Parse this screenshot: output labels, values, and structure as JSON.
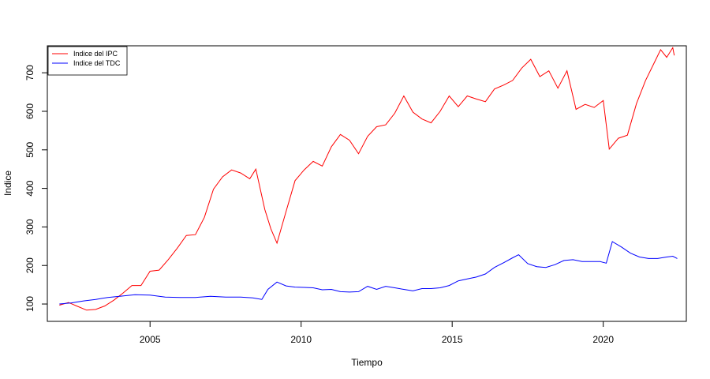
{
  "chart_data": {
    "type": "line",
    "title": "",
    "xlabel": "Tiempo",
    "ylabel": "Indice",
    "xlim": [
      2001.6,
      2022.75
    ],
    "ylim": [
      55,
      770
    ],
    "xticks": [
      2005,
      2010,
      2015,
      2020
    ],
    "yticks": [
      100,
      200,
      300,
      400,
      500,
      600,
      700
    ],
    "grid": false,
    "legend_position": "top-left",
    "series": [
      {
        "name": "Indice del IPC",
        "color": "#ff0000",
        "points": [
          [
            2002.0,
            97
          ],
          [
            2002.3,
            104
          ],
          [
            2002.6,
            94
          ],
          [
            2002.9,
            84
          ],
          [
            2003.2,
            86
          ],
          [
            2003.5,
            95
          ],
          [
            2003.8,
            110
          ],
          [
            2004.1,
            128
          ],
          [
            2004.4,
            148
          ],
          [
            2004.7,
            148
          ],
          [
            2005.0,
            185
          ],
          [
            2005.3,
            188
          ],
          [
            2005.6,
            215
          ],
          [
            2005.9,
            245
          ],
          [
            2006.2,
            278
          ],
          [
            2006.5,
            280
          ],
          [
            2006.8,
            325
          ],
          [
            2007.1,
            398
          ],
          [
            2007.4,
            430
          ],
          [
            2007.7,
            448
          ],
          [
            2008.0,
            440
          ],
          [
            2008.3,
            425
          ],
          [
            2008.5,
            450
          ],
          [
            2008.8,
            345
          ],
          [
            2009.0,
            295
          ],
          [
            2009.2,
            258
          ],
          [
            2009.5,
            340
          ],
          [
            2009.8,
            420
          ],
          [
            2010.1,
            448
          ],
          [
            2010.4,
            470
          ],
          [
            2010.7,
            458
          ],
          [
            2011.0,
            508
          ],
          [
            2011.3,
            540
          ],
          [
            2011.6,
            525
          ],
          [
            2011.9,
            490
          ],
          [
            2012.2,
            535
          ],
          [
            2012.5,
            560
          ],
          [
            2012.8,
            565
          ],
          [
            2013.1,
            595
          ],
          [
            2013.4,
            640
          ],
          [
            2013.7,
            598
          ],
          [
            2014.0,
            580
          ],
          [
            2014.3,
            570
          ],
          [
            2014.6,
            600
          ],
          [
            2014.9,
            640
          ],
          [
            2015.2,
            612
          ],
          [
            2015.5,
            640
          ],
          [
            2015.8,
            632
          ],
          [
            2016.1,
            625
          ],
          [
            2016.4,
            658
          ],
          [
            2016.7,
            668
          ],
          [
            2017.0,
            680
          ],
          [
            2017.3,
            712
          ],
          [
            2017.6,
            735
          ],
          [
            2017.9,
            690
          ],
          [
            2018.2,
            705
          ],
          [
            2018.5,
            660
          ],
          [
            2018.8,
            705
          ],
          [
            2019.1,
            605
          ],
          [
            2019.4,
            618
          ],
          [
            2019.7,
            610
          ],
          [
            2020.0,
            628
          ],
          [
            2020.2,
            502
          ],
          [
            2020.5,
            530
          ],
          [
            2020.8,
            538
          ],
          [
            2021.1,
            620
          ],
          [
            2021.4,
            680
          ],
          [
            2021.7,
            728
          ],
          [
            2021.9,
            760
          ],
          [
            2022.1,
            740
          ],
          [
            2022.3,
            765
          ],
          [
            2022.35,
            745
          ]
        ]
      },
      {
        "name": "Indice del TDC",
        "color": "#0000ff",
        "points": [
          [
            2002.0,
            100
          ],
          [
            2002.4,
            103
          ],
          [
            2002.8,
            108
          ],
          [
            2003.2,
            112
          ],
          [
            2003.6,
            117
          ],
          [
            2004.0,
            120
          ],
          [
            2004.5,
            124
          ],
          [
            2005.0,
            123
          ],
          [
            2005.5,
            118
          ],
          [
            2006.0,
            117
          ],
          [
            2006.5,
            117
          ],
          [
            2007.0,
            120
          ],
          [
            2007.5,
            118
          ],
          [
            2008.0,
            118
          ],
          [
            2008.4,
            116
          ],
          [
            2008.7,
            112
          ],
          [
            2008.9,
            138
          ],
          [
            2009.2,
            157
          ],
          [
            2009.5,
            147
          ],
          [
            2009.8,
            144
          ],
          [
            2010.1,
            143
          ],
          [
            2010.4,
            142
          ],
          [
            2010.7,
            137
          ],
          [
            2011.0,
            138
          ],
          [
            2011.3,
            132
          ],
          [
            2011.6,
            131
          ],
          [
            2011.9,
            132
          ],
          [
            2012.2,
            146
          ],
          [
            2012.5,
            138
          ],
          [
            2012.8,
            146
          ],
          [
            2013.1,
            142
          ],
          [
            2013.4,
            138
          ],
          [
            2013.7,
            134
          ],
          [
            2014.0,
            140
          ],
          [
            2014.3,
            140
          ],
          [
            2014.6,
            142
          ],
          [
            2014.9,
            148
          ],
          [
            2015.2,
            160
          ],
          [
            2015.5,
            165
          ],
          [
            2015.8,
            170
          ],
          [
            2016.1,
            178
          ],
          [
            2016.4,
            195
          ],
          [
            2016.7,
            207
          ],
          [
            2017.0,
            220
          ],
          [
            2017.2,
            228
          ],
          [
            2017.5,
            205
          ],
          [
            2017.8,
            197
          ],
          [
            2018.1,
            195
          ],
          [
            2018.4,
            202
          ],
          [
            2018.7,
            213
          ],
          [
            2019.0,
            215
          ],
          [
            2019.3,
            210
          ],
          [
            2019.6,
            210
          ],
          [
            2019.9,
            210
          ],
          [
            2020.1,
            206
          ],
          [
            2020.3,
            262
          ],
          [
            2020.6,
            248
          ],
          [
            2020.9,
            232
          ],
          [
            2021.2,
            222
          ],
          [
            2021.5,
            218
          ],
          [
            2021.8,
            218
          ],
          [
            2022.1,
            222
          ],
          [
            2022.3,
            224
          ],
          [
            2022.45,
            218
          ]
        ]
      }
    ]
  }
}
